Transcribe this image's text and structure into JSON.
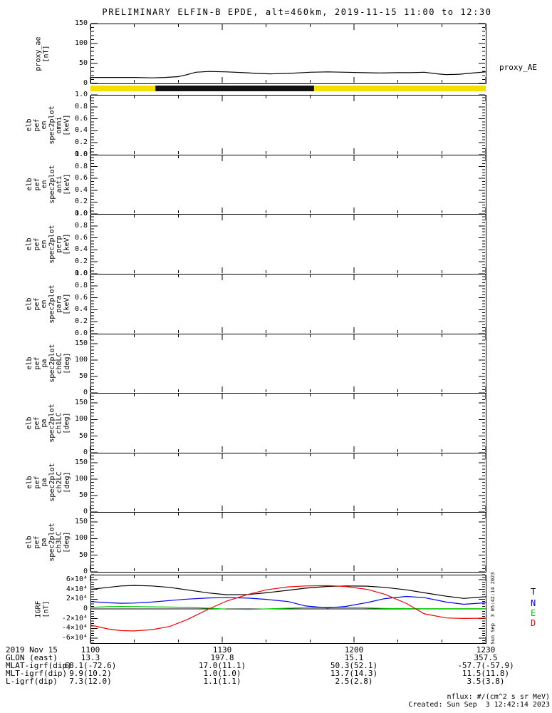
{
  "title": "PRELIMINARY ELFIN-B EPDE, alt=460km, 2019-11-15 11:00 to 12:30",
  "colors": {
    "frame": "#000000",
    "trace_T": "#000000",
    "trace_N": "#0000ee",
    "trace_E": "#00c800",
    "trace_D": "#ee0000",
    "status_track": "#f3e000",
    "status_segment": "#111111"
  },
  "time_axis": {
    "date_label": "2019 Nov 15",
    "tick_labels": [
      "1100",
      "1130",
      "1200",
      "1230"
    ],
    "tick_minutes": [
      0,
      30,
      60,
      90
    ],
    "total_minutes": 90,
    "minor_step_minutes": 10
  },
  "panels": [
    {
      "id": "proxy_ae",
      "label_lines": [
        "proxy_ae",
        "[nT]"
      ],
      "right_label": "proxy_AE",
      "ylim": [
        0,
        150
      ],
      "yticks": [
        0,
        50,
        100,
        150
      ],
      "minor_step": 10,
      "tick_format": "int",
      "empty": false
    },
    {
      "id": "en_omni",
      "label_lines": [
        "elb",
        "pef",
        "en",
        "spec2plot",
        "omni",
        "[keV]"
      ],
      "ylim": [
        0,
        1
      ],
      "yticks": [
        0,
        0.2,
        0.4,
        0.6,
        0.8,
        1
      ],
      "minor_step": 0.05,
      "tick_format": "1dp",
      "empty": true
    },
    {
      "id": "en_anti",
      "label_lines": [
        "elb",
        "pef",
        "en",
        "spec2plot",
        "anti",
        "[keV]"
      ],
      "ylim": [
        0,
        1
      ],
      "yticks": [
        0,
        0.2,
        0.4,
        0.6,
        0.8,
        1
      ],
      "minor_step": 0.05,
      "tick_format": "1dp",
      "empty": true
    },
    {
      "id": "en_perp",
      "label_lines": [
        "elb",
        "pef",
        "en",
        "spec2plot",
        "perp",
        "[keV]"
      ],
      "ylim": [
        0,
        1
      ],
      "yticks": [
        0,
        0.2,
        0.4,
        0.6,
        0.8,
        1
      ],
      "minor_step": 0.05,
      "tick_format": "1dp",
      "empty": true
    },
    {
      "id": "en_para",
      "label_lines": [
        "elb",
        "pef",
        "en",
        "spec2plot",
        "para",
        "[keV]"
      ],
      "ylim": [
        0,
        1
      ],
      "yticks": [
        0,
        0.2,
        0.4,
        0.6,
        0.8,
        1
      ],
      "minor_step": 0.05,
      "tick_format": "1dp",
      "empty": true
    },
    {
      "id": "pa_ch0lc",
      "label_lines": [
        "elb",
        "pef",
        "pa",
        "spec2plot",
        "ch0LC",
        "[deg]"
      ],
      "ylim": [
        0,
        180
      ],
      "yticks": [
        0,
        50,
        100,
        150
      ],
      "minor_step": 10,
      "tick_format": "int",
      "empty": true
    },
    {
      "id": "pa_ch1lc",
      "label_lines": [
        "elb",
        "pef",
        "pa",
        "spec2plot",
        "ch1LC",
        "[deg]"
      ],
      "ylim": [
        0,
        180
      ],
      "yticks": [
        0,
        50,
        100,
        150
      ],
      "minor_step": 10,
      "tick_format": "int",
      "empty": true
    },
    {
      "id": "pa_ch2lc",
      "label_lines": [
        "elb",
        "pef",
        "pa",
        "spec2plot",
        "ch2LC",
        "[deg]"
      ],
      "ylim": [
        0,
        180
      ],
      "yticks": [
        0,
        50,
        100,
        150
      ],
      "minor_step": 10,
      "tick_format": "int",
      "empty": true
    },
    {
      "id": "pa_ch3lc",
      "label_lines": [
        "elb",
        "pef",
        "pa",
        "spec2plot",
        "ch3LC",
        "[deg]"
      ],
      "ylim": [
        0,
        180
      ],
      "yticks": [
        0,
        50,
        100,
        150
      ],
      "minor_step": 10,
      "tick_format": "int",
      "empty": true
    },
    {
      "id": "igrf",
      "label_lines": [
        "IGRF",
        "[nT]"
      ],
      "ylim": [
        -70000,
        70000
      ],
      "yticks": [
        -60000,
        -40000,
        -20000,
        0,
        20000,
        40000,
        60000
      ],
      "minor_step": 5000,
      "tick_format": "exp4",
      "empty": false,
      "legend": [
        {
          "label": "T",
          "color": "#000000"
        },
        {
          "label": "N",
          "color": "#0000ee"
        },
        {
          "label": "E",
          "color": "#00c800"
        },
        {
          "label": "D",
          "color": "#ee0000"
        }
      ]
    }
  ],
  "status_bar": {
    "track_color": "#f3e000",
    "segments": [
      {
        "start_min": 14.8,
        "end_min": 50.9,
        "color": "#111111"
      }
    ]
  },
  "chart_data": [
    {
      "type": "line",
      "title": "proxy_AE",
      "ylabel": "proxy_ae [nT]",
      "ylim": [
        0,
        150
      ],
      "x_range_labels": [
        "11:00",
        "12:30"
      ],
      "x_minutes": [
        0,
        5,
        10,
        14,
        17,
        20,
        22,
        24,
        27,
        31,
        35,
        38,
        41,
        45,
        50,
        54,
        58,
        62,
        66,
        70,
        73,
        76,
        79,
        81,
        84,
        87,
        90
      ],
      "values": [
        15,
        15,
        15,
        14,
        15,
        17,
        22,
        28,
        30,
        29,
        27,
        25,
        24,
        25,
        28,
        29,
        28,
        27,
        26,
        27,
        27,
        28,
        24,
        22,
        23,
        26,
        29
      ]
    },
    {
      "type": "line",
      "title": "IGRF [nT]",
      "ylabel": "IGRF [nT]",
      "ylim": [
        -70000,
        70000
      ],
      "legend_position": "right",
      "x_range_labels": [
        "11:00",
        "12:30"
      ],
      "x_minutes": [
        0,
        4,
        7,
        10,
        14,
        18,
        22,
        27,
        31,
        36,
        40,
        45,
        49,
        54,
        58,
        63,
        67,
        72,
        76,
        81,
        85,
        90
      ],
      "series": [
        {
          "name": "T",
          "color": "#000000",
          "values": [
            40000,
            44000,
            47000,
            48000,
            47000,
            44000,
            39000,
            32500,
            29000,
            29500,
            33000,
            38000,
            42500,
            46000,
            47000,
            46500,
            44000,
            39000,
            33000,
            26000,
            21500,
            25000
          ]
        },
        {
          "name": "N",
          "color": "#0000ee",
          "values": [
            15000,
            12500,
            11500,
            12000,
            14000,
            17000,
            20000,
            22500,
            23000,
            22000,
            19500,
            15000,
            6000,
            2000,
            5000,
            13000,
            21000,
            25500,
            23000,
            14000,
            9500,
            12500
          ]
        },
        {
          "name": "E",
          "color": "#00c800",
          "values": [
            3000,
            4500,
            5000,
            4800,
            4200,
            3800,
            3000,
            1500,
            -500,
            -1000,
            0,
            1500,
            2500,
            3000,
            3000,
            2000,
            1000,
            800,
            500,
            500,
            500,
            500
          ]
        },
        {
          "name": "D",
          "color": "#ee0000",
          "values": [
            -33000,
            -41000,
            -44500,
            -45000,
            -42500,
            -36000,
            -22000,
            0,
            16000,
            30000,
            39000,
            45000,
            47000,
            47500,
            46000,
            40000,
            30000,
            11000,
            -10000,
            -18500,
            -19500,
            -19000
          ]
        }
      ]
    }
  ],
  "bottom_table": {
    "rows": [
      {
        "label": "2019 Nov 15",
        "values": [
          "1100",
          "1130",
          "1200",
          "1230"
        ]
      },
      {
        "label": "GLON (east)",
        "values": [
          "13.3",
          "197.8",
          "15.1",
          "357.5"
        ]
      },
      {
        "label": "MLAT-igrf(dip)",
        "values": [
          "68.1(-72.6)",
          "17.0(11.1)",
          "50.3(52.1)",
          "-57.7(-57.9)"
        ]
      },
      {
        "label": "MLT-igrf(dip)",
        "values": [
          "9.9(10.2)",
          "1.0(1.0)",
          "13.7(14.3)",
          "11.5(11.8)"
        ]
      },
      {
        "label": "L-igrf(dip)",
        "values": [
          "7.3(12.0)",
          "1.1(1.1)",
          "2.5(2.8)",
          "3.5(3.8)"
        ]
      }
    ]
  },
  "footer": {
    "units_note": "nflux: #/(cm^2 s sr MeV)",
    "created": "Created: Sun Sep  3 12:42:14 2023"
  },
  "side_stamp": "Sun Sep  3 05:42:14 2023"
}
